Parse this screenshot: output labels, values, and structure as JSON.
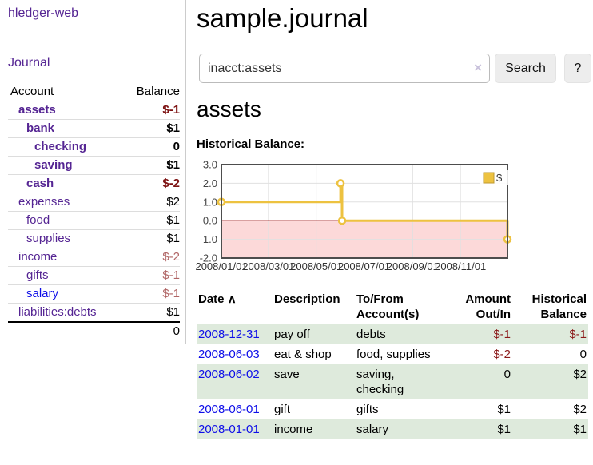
{
  "colors": {
    "link_visited": "#552593",
    "link_unvisited": "#0f0fe8",
    "negative_strong": "#7d1212",
    "negative_muted": "#b06565",
    "register_negative": "#8b1a1a",
    "row_highlight": "#deeadc",
    "series_gold": "#edc240",
    "legend_swatch_border": "#bf992f",
    "zero_line": "#990000",
    "negative_region": "#fcd9d9",
    "grid": "#e0e0e0",
    "plot_border": "#4d4d4d"
  },
  "sidebar": {
    "app_title": "hledger-web",
    "journal_label": "Journal",
    "headers": {
      "account": "Account",
      "balance": "Balance"
    },
    "accounts": [
      {
        "name": "assets",
        "balance": "$-1",
        "level": 0,
        "matched": true
      },
      {
        "name": "bank",
        "balance": "$1",
        "level": 1,
        "matched": true
      },
      {
        "name": "checking",
        "balance": "0",
        "level": 2,
        "matched": true
      },
      {
        "name": "saving",
        "balance": "$1",
        "level": 2,
        "matched": true
      },
      {
        "name": "cash",
        "balance": "$-2",
        "level": 1,
        "matched": true
      },
      {
        "name": "expenses",
        "balance": "$2",
        "level": 0
      },
      {
        "name": "food",
        "balance": "$1",
        "level": 1
      },
      {
        "name": "supplies",
        "balance": "$1",
        "level": 1
      },
      {
        "name": "income",
        "balance": "$-2",
        "level": 0
      },
      {
        "name": "gifts",
        "balance": "$-1",
        "level": 1
      },
      {
        "name": "salary",
        "balance": "$-1",
        "level": 1,
        "visited": false
      },
      {
        "name": "liabilities:debts",
        "balance": "$1",
        "level": 0
      }
    ],
    "total": "0"
  },
  "main": {
    "title": "sample.journal",
    "search": {
      "value": "inacct:assets",
      "clear_icon": "×",
      "button_label": "Search",
      "help_label": "?"
    },
    "account_heading": "assets",
    "register": {
      "headers": {
        "date": "Date",
        "sort_indicator": "∧",
        "description": "Description",
        "accounts": "To/From Account(s)",
        "amount": "Amount Out/In",
        "balance": "Historical Balance"
      },
      "rows": [
        {
          "date": "2008-12-31",
          "description": "pay off",
          "accounts": [
            "debts"
          ],
          "amount": "$-1",
          "balance": "$-1"
        },
        {
          "date": "2008-06-03",
          "description": "eat & shop",
          "accounts": [
            "food",
            "supplies"
          ],
          "amount": "$-2",
          "balance": "0"
        },
        {
          "date": "2008-06-02",
          "description": "save",
          "accounts": [
            "saving",
            "checking"
          ],
          "amount": "0",
          "balance": "$2"
        },
        {
          "date": "2008-06-01",
          "description": "gift",
          "accounts": [
            "gifts"
          ],
          "amount": "$1",
          "balance": "$2"
        },
        {
          "date": "2008-01-01",
          "description": "income",
          "accounts": [
            "salary"
          ],
          "amount": "$1",
          "balance": "$1"
        }
      ]
    }
  },
  "chart_data": {
    "type": "line",
    "title": "Historical Balance:",
    "step": true,
    "series": [
      {
        "name": "$",
        "points": [
          [
            "2008-01-01",
            1
          ],
          [
            "2008-06-01",
            2
          ],
          [
            "2008-06-03",
            0
          ],
          [
            "2008-12-31",
            -1
          ]
        ]
      }
    ],
    "x_domain": [
      "2008-01-01",
      "2008-12-31"
    ],
    "x_ticks": [
      "2008/01/01",
      "2008/03/01",
      "2008/05/01",
      "2008/07/01",
      "2008/09/01",
      "2008/11/01"
    ],
    "y_ticks": [
      "3.0",
      "2.0",
      "1.0",
      "0.0",
      "-1.0",
      "-2.0"
    ],
    "ylim": [
      -2,
      3
    ],
    "grid": true,
    "legend_position": "top-right",
    "negative_region_shaded": true
  }
}
